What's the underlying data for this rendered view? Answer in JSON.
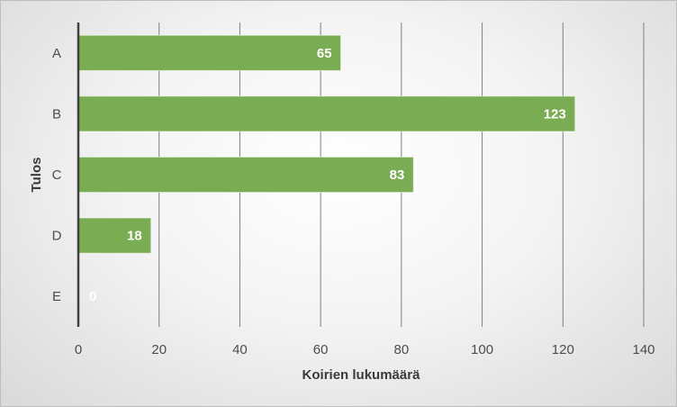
{
  "chart_data": {
    "type": "bar",
    "orientation": "horizontal",
    "categories": [
      "A",
      "B",
      "C",
      "D",
      "E"
    ],
    "values": [
      65,
      123,
      83,
      18,
      0
    ],
    "xlabel": "Koirien lukumäärä",
    "ylabel": "Tulos",
    "xlim": [
      0,
      140
    ],
    "x_ticks": [
      0,
      20,
      40,
      60,
      80,
      100,
      120,
      140
    ],
    "grid": "vertical",
    "legend": "none",
    "bar_color": "#7aad53",
    "label_color": "#ffffff"
  }
}
